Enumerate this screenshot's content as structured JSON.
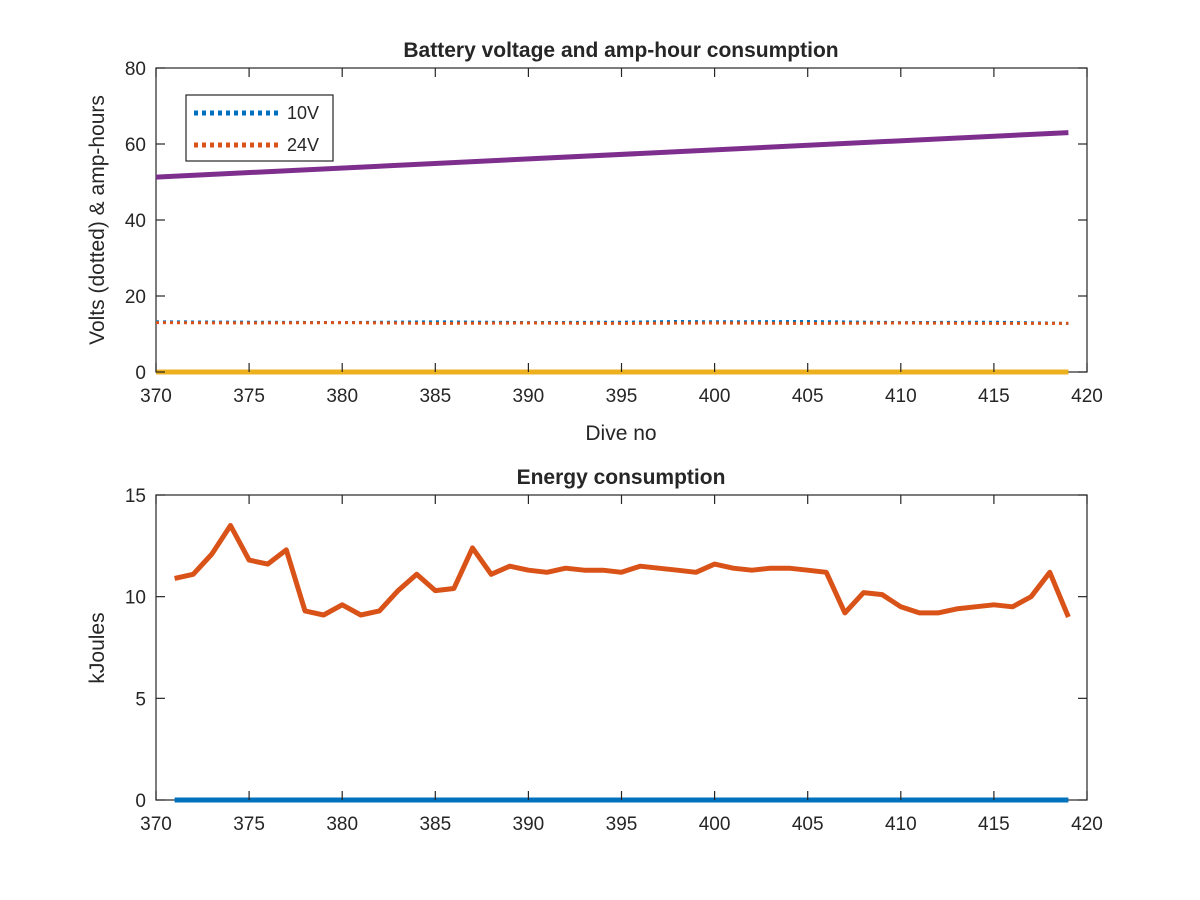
{
  "chart_data": [
    {
      "type": "line",
      "title": "Battery voltage and amp-hour consumption",
      "xlabel": "Dive no",
      "ylabel": "Volts (dotted) & amp-hours",
      "xlim": [
        370,
        420
      ],
      "ylim": [
        0,
        80
      ],
      "xticks": [
        370,
        375,
        380,
        385,
        390,
        395,
        400,
        405,
        410,
        415,
        420
      ],
      "yticks": [
        0,
        20,
        40,
        60,
        80
      ],
      "legend_position": "top-left",
      "series": [
        {
          "name": "10V",
          "style": "dotted",
          "color": "#0072BD",
          "x": [
            370,
            375,
            380,
            385,
            390,
            395,
            398,
            400,
            405,
            410,
            415,
            419
          ],
          "y": [
            13.2,
            13.1,
            13.0,
            13.2,
            13.0,
            13.1,
            13.3,
            13.2,
            13.3,
            13.0,
            13.1,
            12.8
          ]
        },
        {
          "name": "24V",
          "style": "dotted",
          "color": "#D95319",
          "x": [
            370,
            375,
            380,
            385,
            390,
            395,
            400,
            405,
            410,
            415,
            419
          ],
          "y": [
            13.0,
            12.9,
            13.0,
            12.8,
            12.9,
            12.8,
            12.9,
            12.8,
            12.9,
            12.8,
            12.8
          ]
        },
        {
          "style": "solid",
          "color": "#7E2F8E",
          "x": [
            370,
            419
          ],
          "y": [
            51.3,
            63.0
          ]
        },
        {
          "style": "solid",
          "color": "#EDB120",
          "x": [
            370,
            419
          ],
          "y": [
            0,
            0
          ]
        }
      ]
    },
    {
      "type": "line",
      "title": "Energy consumption",
      "xlabel": "",
      "ylabel": "kJoules",
      "xlim": [
        370,
        420
      ],
      "ylim": [
        0,
        15
      ],
      "xticks": [
        370,
        375,
        380,
        385,
        390,
        395,
        400,
        405,
        410,
        415,
        420
      ],
      "yticks": [
        0,
        5,
        10,
        15
      ],
      "series": [
        {
          "style": "solid",
          "color": "#D95319",
          "x": [
            371,
            372,
            373,
            374,
            375,
            376,
            377,
            378,
            379,
            380,
            381,
            382,
            383,
            384,
            385,
            386,
            387,
            388,
            389,
            390,
            391,
            392,
            393,
            394,
            395,
            396,
            397,
            398,
            399,
            400,
            401,
            402,
            403,
            404,
            405,
            406,
            407,
            408,
            409,
            410,
            411,
            412,
            413,
            414,
            415,
            416,
            417,
            418,
            419
          ],
          "y": [
            10.9,
            11.1,
            12.1,
            13.5,
            11.8,
            11.6,
            12.3,
            9.3,
            9.1,
            9.6,
            9.1,
            9.3,
            10.3,
            11.1,
            10.3,
            10.4,
            12.4,
            11.1,
            11.5,
            11.3,
            11.2,
            11.4,
            11.3,
            11.3,
            11.2,
            11.5,
            11.4,
            11.3,
            11.2,
            11.6,
            11.4,
            11.3,
            11.4,
            11.4,
            11.3,
            11.2,
            9.2,
            10.2,
            10.1,
            9.5,
            9.2,
            9.2,
            9.4,
            9.5,
            9.6,
            9.5,
            10.0,
            11.2,
            9.0
          ]
        },
        {
          "style": "solid",
          "color": "#0072BD",
          "x": [
            371,
            419
          ],
          "y": [
            0,
            0
          ]
        }
      ]
    }
  ]
}
